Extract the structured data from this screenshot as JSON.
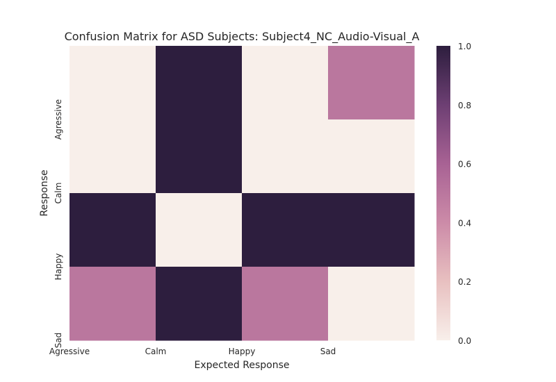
{
  "chart_data": {
    "type": "heatmap",
    "title": "Confusion Matrix for ASD Subjects: Subject4_NC_Audio-Visual_A",
    "xlabel": "Expected Response",
    "ylabel": "Response",
    "x_tick_labels": [
      "Agressive",
      "Calm",
      "Happy",
      "Sad"
    ],
    "y_tick_labels": [
      "Agressive",
      "Calm",
      "Happy",
      "Sad"
    ],
    "values": [
      [
        0.0,
        1.0,
        0.0,
        0.5
      ],
      [
        0.0,
        1.0,
        0.0,
        0.0
      ],
      [
        1.0,
        0.0,
        1.0,
        1.0
      ],
      [
        0.5,
        1.0,
        0.5,
        0.0
      ]
    ],
    "vmin": 0.0,
    "vmax": 1.0,
    "colorbar_ticks": [
      "0.0",
      "0.2",
      "0.4",
      "0.6",
      "0.8",
      "1.0"
    ],
    "colormap": [
      "#f8efea",
      "#e8c0c0",
      "#cc8ba8",
      "#a86294",
      "#6d3f73",
      "#2d1e3e"
    ]
  }
}
